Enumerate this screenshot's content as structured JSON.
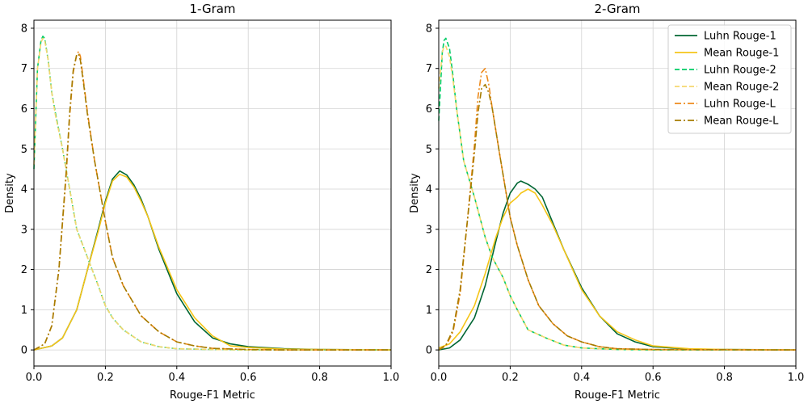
{
  "chart_data": [
    {
      "type": "line",
      "title": "1-Gram",
      "xlabel": "Rouge-F1 Metric",
      "ylabel": "Density",
      "xlim": [
        0,
        1
      ],
      "ylim": [
        -0.4,
        8.2
      ],
      "xticks": [
        "0.0",
        "0.2",
        "0.4",
        "0.6",
        "0.8",
        "1.0"
      ],
      "yticks": [
        "0",
        "1",
        "2",
        "3",
        "4",
        "5",
        "6",
        "7",
        "8"
      ],
      "grid": true,
      "legend": false,
      "series": [
        {
          "name": "Luhn Rouge-1",
          "color": "#006633",
          "dash": "solid",
          "x": [
            0,
            0.05,
            0.08,
            0.12,
            0.15,
            0.18,
            0.2,
            0.22,
            0.24,
            0.26,
            0.28,
            0.3,
            0.32,
            0.35,
            0.4,
            0.45,
            0.5,
            0.55,
            0.6,
            0.7,
            0.8,
            1.0
          ],
          "y": [
            0,
            0.1,
            0.3,
            1.0,
            2.0,
            3.0,
            3.7,
            4.25,
            4.45,
            4.35,
            4.1,
            3.75,
            3.3,
            2.5,
            1.4,
            0.7,
            0.3,
            0.15,
            0.08,
            0.03,
            0.01,
            0
          ]
        },
        {
          "name": "Mean Rouge-1",
          "color": "#f5c518",
          "dash": "solid",
          "x": [
            0,
            0.05,
            0.08,
            0.12,
            0.15,
            0.18,
            0.2,
            0.22,
            0.24,
            0.26,
            0.28,
            0.3,
            0.32,
            0.35,
            0.4,
            0.45,
            0.5,
            0.55,
            0.6,
            0.7,
            0.8,
            1.0
          ],
          "y": [
            0,
            0.1,
            0.3,
            1.0,
            2.0,
            2.95,
            3.65,
            4.2,
            4.37,
            4.3,
            4.05,
            3.7,
            3.3,
            2.55,
            1.5,
            0.8,
            0.35,
            0.1,
            0.06,
            0.02,
            0.01,
            0
          ]
        },
        {
          "name": "Luhn Rouge-2",
          "color": "#00cc66",
          "dash": "dashed",
          "x": [
            0,
            0.01,
            0.02,
            0.025,
            0.03,
            0.04,
            0.05,
            0.06,
            0.08,
            0.1,
            0.12,
            0.15,
            0.18,
            0.2,
            0.22,
            0.25,
            0.3,
            0.35,
            0.4,
            0.5,
            0.6,
            1.0
          ],
          "y": [
            4.5,
            7.0,
            7.7,
            7.8,
            7.75,
            7.2,
            6.4,
            5.9,
            5.0,
            4.0,
            3.0,
            2.3,
            1.6,
            1.1,
            0.8,
            0.5,
            0.2,
            0.08,
            0.03,
            0.01,
            0,
            0
          ]
        },
        {
          "name": "Mean Rouge-2",
          "color": "#f5d76e",
          "dash": "dashed",
          "x": [
            0,
            0.01,
            0.02,
            0.025,
            0.03,
            0.04,
            0.05,
            0.06,
            0.08,
            0.1,
            0.12,
            0.15,
            0.18,
            0.2,
            0.22,
            0.25,
            0.3,
            0.35,
            0.4,
            0.5,
            0.6,
            1.0
          ],
          "y": [
            4.6,
            7.0,
            7.65,
            7.75,
            7.7,
            7.2,
            6.4,
            5.85,
            5.0,
            4.0,
            3.0,
            2.3,
            1.6,
            1.1,
            0.8,
            0.5,
            0.2,
            0.08,
            0.03,
            0.01,
            0,
            0
          ]
        },
        {
          "name": "Luhn Rouge-L",
          "color": "#ee8a1c",
          "dash": "dashdot",
          "x": [
            0,
            0.03,
            0.05,
            0.07,
            0.09,
            0.1,
            0.11,
            0.12,
            0.125,
            0.13,
            0.14,
            0.15,
            0.17,
            0.2,
            0.22,
            0.25,
            0.3,
            0.35,
            0.4,
            0.45,
            0.5,
            0.6,
            0.7,
            1.0
          ],
          "y": [
            0,
            0.15,
            0.6,
            2.0,
            4.3,
            5.8,
            6.9,
            7.35,
            7.42,
            7.3,
            6.6,
            5.9,
            4.7,
            3.2,
            2.3,
            1.6,
            0.85,
            0.45,
            0.2,
            0.1,
            0.04,
            0.01,
            0,
            0
          ]
        },
        {
          "name": "Mean Rouge-L",
          "color": "#a67c00",
          "dash": "dashdot",
          "x": [
            0,
            0.03,
            0.05,
            0.07,
            0.09,
            0.1,
            0.11,
            0.12,
            0.125,
            0.13,
            0.14,
            0.15,
            0.17,
            0.2,
            0.22,
            0.25,
            0.3,
            0.35,
            0.4,
            0.45,
            0.5,
            0.6,
            0.7,
            1.0
          ],
          "y": [
            0,
            0.15,
            0.6,
            2.0,
            4.4,
            5.9,
            6.95,
            7.35,
            7.35,
            7.2,
            6.55,
            5.85,
            4.7,
            3.2,
            2.3,
            1.6,
            0.85,
            0.45,
            0.2,
            0.1,
            0.04,
            0.01,
            0,
            0
          ]
        }
      ]
    },
    {
      "type": "line",
      "title": "2-Gram",
      "xlabel": "Rouge-F1 Metric",
      "ylabel": "Density",
      "xlim": [
        0,
        1
      ],
      "ylim": [
        -0.4,
        8.2
      ],
      "xticks": [
        "0.0",
        "0.2",
        "0.4",
        "0.6",
        "0.8",
        "1.0"
      ],
      "yticks": [
        "0",
        "1",
        "2",
        "3",
        "4",
        "5",
        "6",
        "7",
        "8"
      ],
      "grid": true,
      "legend": "top-right",
      "series": [
        {
          "name": "Luhn Rouge-1",
          "color": "#006633",
          "dash": "solid",
          "x": [
            0,
            0.03,
            0.06,
            0.1,
            0.13,
            0.16,
            0.18,
            0.2,
            0.22,
            0.23,
            0.25,
            0.27,
            0.29,
            0.32,
            0.35,
            0.4,
            0.45,
            0.5,
            0.55,
            0.6,
            0.7,
            0.8,
            1.0
          ],
          "y": [
            0,
            0.05,
            0.25,
            0.8,
            1.6,
            2.7,
            3.4,
            3.9,
            4.15,
            4.2,
            4.12,
            4.0,
            3.8,
            3.15,
            2.5,
            1.55,
            0.85,
            0.4,
            0.2,
            0.08,
            0.02,
            0.01,
            0
          ]
        },
        {
          "name": "Mean Rouge-1",
          "color": "#f5c518",
          "dash": "solid",
          "x": [
            0,
            0.03,
            0.06,
            0.1,
            0.13,
            0.16,
            0.18,
            0.2,
            0.22,
            0.23,
            0.25,
            0.27,
            0.29,
            0.32,
            0.35,
            0.4,
            0.45,
            0.5,
            0.55,
            0.6,
            0.7,
            0.8,
            1.0
          ],
          "y": [
            0.05,
            0.15,
            0.45,
            1.1,
            1.9,
            2.8,
            3.3,
            3.65,
            3.8,
            3.9,
            4.0,
            3.9,
            3.6,
            3.1,
            2.5,
            1.5,
            0.85,
            0.45,
            0.25,
            0.1,
            0.03,
            0.01,
            0
          ]
        },
        {
          "name": "Luhn Rouge-2",
          "color": "#00cc66",
          "dash": "dashed",
          "x": [
            0,
            0.01,
            0.015,
            0.02,
            0.03,
            0.04,
            0.05,
            0.07,
            0.1,
            0.13,
            0.15,
            0.18,
            0.2,
            0.22,
            0.25,
            0.3,
            0.35,
            0.4,
            0.5,
            0.6,
            1.0
          ],
          "y": [
            5.7,
            7.4,
            7.7,
            7.75,
            7.5,
            6.8,
            6.0,
            4.7,
            3.8,
            2.8,
            2.3,
            1.8,
            1.35,
            1.0,
            0.5,
            0.3,
            0.12,
            0.05,
            0.01,
            0,
            0
          ]
        },
        {
          "name": "Mean Rouge-2",
          "color": "#f5d76e",
          "dash": "dashed",
          "x": [
            0,
            0.01,
            0.015,
            0.02,
            0.03,
            0.04,
            0.05,
            0.07,
            0.1,
            0.13,
            0.15,
            0.18,
            0.2,
            0.22,
            0.25,
            0.3,
            0.35,
            0.4,
            0.5,
            0.6,
            1.0
          ],
          "y": [
            6.5,
            7.4,
            7.55,
            7.55,
            7.3,
            6.7,
            6.0,
            4.7,
            3.8,
            2.8,
            2.3,
            1.8,
            1.35,
            1.0,
            0.5,
            0.3,
            0.12,
            0.05,
            0.01,
            0,
            0
          ]
        },
        {
          "name": "Luhn Rouge-L",
          "color": "#ee8a1c",
          "dash": "dashdot",
          "x": [
            0,
            0.02,
            0.04,
            0.06,
            0.08,
            0.1,
            0.11,
            0.12,
            0.13,
            0.14,
            0.15,
            0.17,
            0.2,
            0.22,
            0.25,
            0.28,
            0.32,
            0.36,
            0.4,
            0.45,
            0.5,
            0.6,
            1.0
          ],
          "y": [
            0,
            0.1,
            0.45,
            1.4,
            3.2,
            5.1,
            6.3,
            6.9,
            7.0,
            6.6,
            6.0,
            4.9,
            3.3,
            2.6,
            1.75,
            1.1,
            0.65,
            0.35,
            0.2,
            0.08,
            0.03,
            0.01,
            0
          ]
        },
        {
          "name": "Mean Rouge-L",
          "color": "#a67c00",
          "dash": "dashdot",
          "x": [
            0,
            0.02,
            0.04,
            0.06,
            0.08,
            0.1,
            0.11,
            0.12,
            0.13,
            0.14,
            0.15,
            0.17,
            0.2,
            0.22,
            0.25,
            0.28,
            0.32,
            0.36,
            0.4,
            0.45,
            0.5,
            0.6,
            1.0
          ],
          "y": [
            0,
            0.12,
            0.5,
            1.5,
            3.2,
            4.9,
            5.9,
            6.5,
            6.6,
            6.4,
            6.0,
            4.9,
            3.3,
            2.6,
            1.75,
            1.1,
            0.65,
            0.35,
            0.2,
            0.08,
            0.03,
            0.01,
            0
          ]
        }
      ]
    }
  ]
}
